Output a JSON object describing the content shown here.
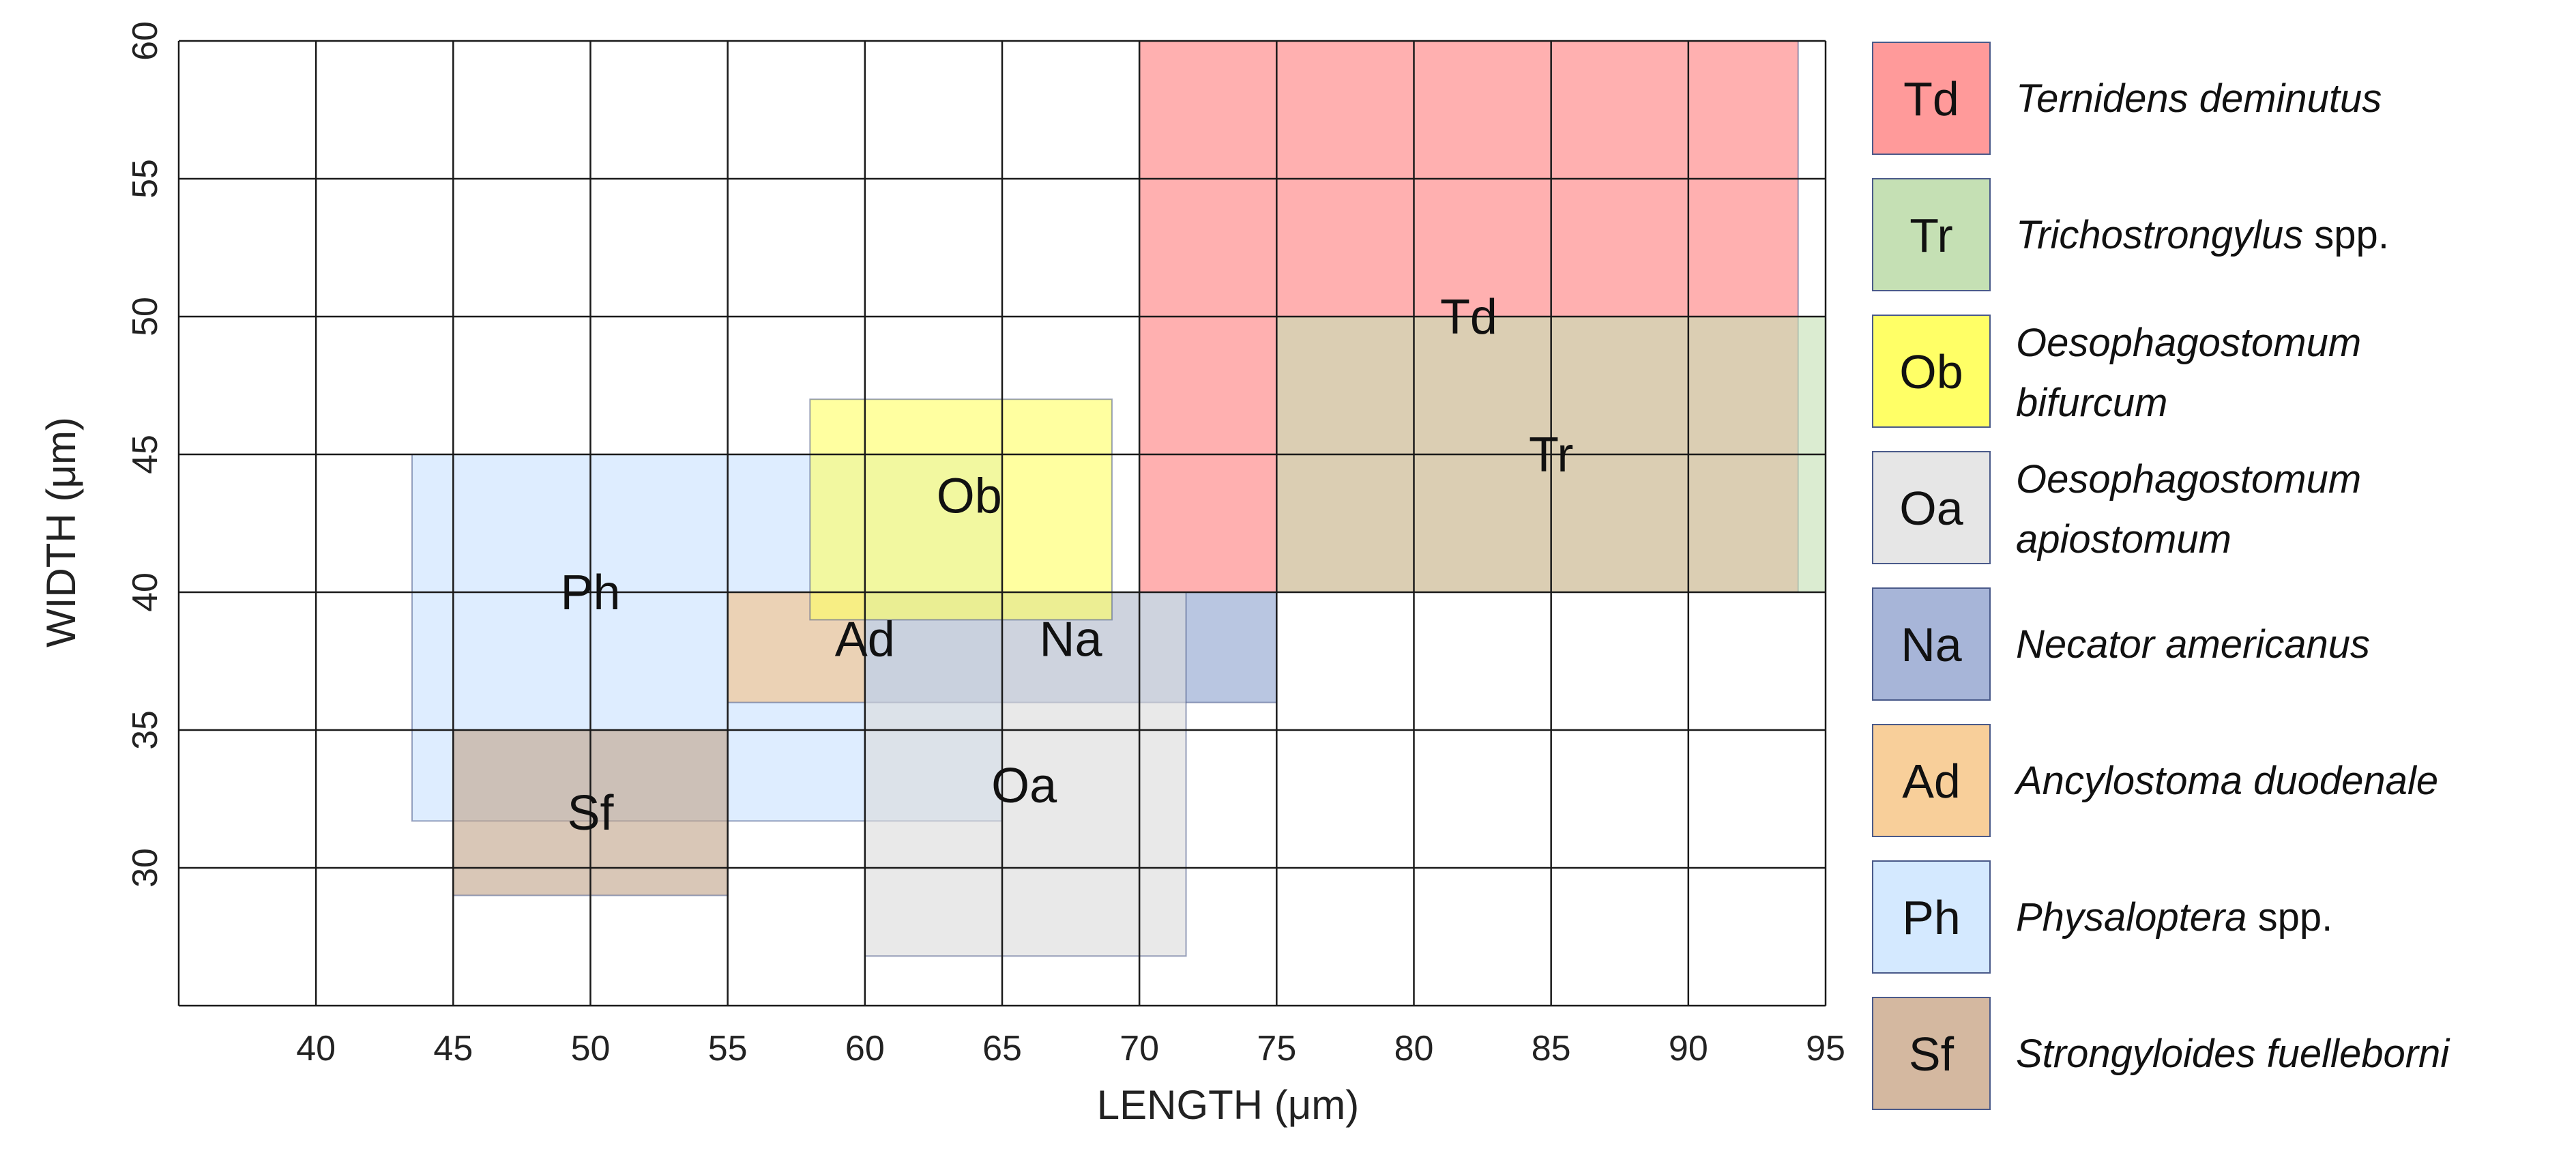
{
  "chart_data": {
    "type": "range-box",
    "xlabel": "LENGTH (μm)",
    "ylabel": "WIDTH (μm)",
    "xlim": [
      35,
      95
    ],
    "ylim": [
      25,
      60
    ],
    "xticks": [
      40,
      45,
      50,
      55,
      60,
      65,
      70,
      75,
      80,
      85,
      90,
      95
    ],
    "yticks": [
      30,
      35,
      40,
      45,
      50,
      55,
      60
    ],
    "grid": true,
    "legend_position": "right",
    "boxes": [
      {
        "code": "Td",
        "name": "Ternidens deminutus",
        "spp": "",
        "color": "#ff8080",
        "x_min": 70,
        "x_max": 94,
        "y_min": 40,
        "y_max": 60,
        "label_x": 82,
        "label_y": 50,
        "z": 1
      },
      {
        "code": "Tr",
        "name": "Trichostrongylus",
        "spp": " spp.",
        "color": "#c5e0b4",
        "x_min": 75,
        "x_max": 95,
        "y_min": 40,
        "y_max": 50,
        "label_x": 85,
        "label_y": 45,
        "z": 2
      },
      {
        "code": "Ph",
        "name": "Physaloptera",
        "spp": " spp.",
        "color": "#c9e2ff",
        "x_min": 43.5,
        "x_max": 65,
        "y_min": 31.7,
        "y_max": 45,
        "label_x": 50,
        "label_y": 40,
        "z": 3
      },
      {
        "code": "Ad",
        "name": "Ancylostoma duodenale",
        "spp": "",
        "color": "#f4c188",
        "x_min": 55,
        "x_max": 60,
        "y_min": 36,
        "y_max": 40,
        "label_x": 60,
        "label_y": 38.3,
        "z": 4
      },
      {
        "code": "Na",
        "name": "Necator americanus",
        "spp": "",
        "color": "#8ea3cf",
        "x_min": 60,
        "x_max": 75,
        "y_min": 36,
        "y_max": 40,
        "label_x": 67.5,
        "label_y": 38.3,
        "z": 5
      },
      {
        "code": "Oa",
        "name": "Oesophagostomum apiostomum",
        "spp": "",
        "color": "#dcdcdc",
        "x_min": 60,
        "x_max": 71.7,
        "y_min": 26.8,
        "y_max": 40,
        "label_x": 65.8,
        "label_y": 33,
        "z": 6
      },
      {
        "code": "Ob",
        "name": "Oesophagostomum bifurcum",
        "spp": "",
        "color": "#ffff66",
        "x_min": 58,
        "x_max": 69,
        "y_min": 39,
        "y_max": 47,
        "label_x": 63.8,
        "label_y": 43.5,
        "z": 7
      },
      {
        "code": "Sf",
        "name": "Strongyloides fuelleborni",
        "spp": "",
        "color": "#c2a58b",
        "x_min": 45,
        "x_max": 55,
        "y_min": 29,
        "y_max": 35,
        "label_x": 50,
        "label_y": 32,
        "z": 8
      }
    ],
    "legend": [
      {
        "code": "Td",
        "line1": "Ternidens deminutus",
        "line2": "",
        "spp": "",
        "color": "#ff9a9a"
      },
      {
        "code": "Tr",
        "line1": "Trichostrongylus",
        "line2": "",
        "spp": " spp.",
        "color": "#c5e0b4"
      },
      {
        "code": "Ob",
        "line1": "Oesophagostomum",
        "line2": "bifurcum",
        "spp": "",
        "color": "#ffff66"
      },
      {
        "code": "Oa",
        "line1": "Oesophagostomum",
        "line2": "apiostomum",
        "spp": "",
        "color": "#e6e6e6"
      },
      {
        "code": "Na",
        "line1": "Necator americanus",
        "line2": "",
        "spp": "",
        "color": "#a7b5d8"
      },
      {
        "code": "Ad",
        "line1": "Ancylostoma duodenale",
        "line2": "",
        "spp": "",
        "color": "#f8cf9a"
      },
      {
        "code": "Ph",
        "line1": "Physaloptera",
        "line2": "",
        "spp": " spp.",
        "color": "#d4e9ff"
      },
      {
        "code": "Sf",
        "line1": "Strongyloides fuelleborni",
        "line2": "",
        "spp": "",
        "color": "#d4b8a0"
      }
    ]
  }
}
